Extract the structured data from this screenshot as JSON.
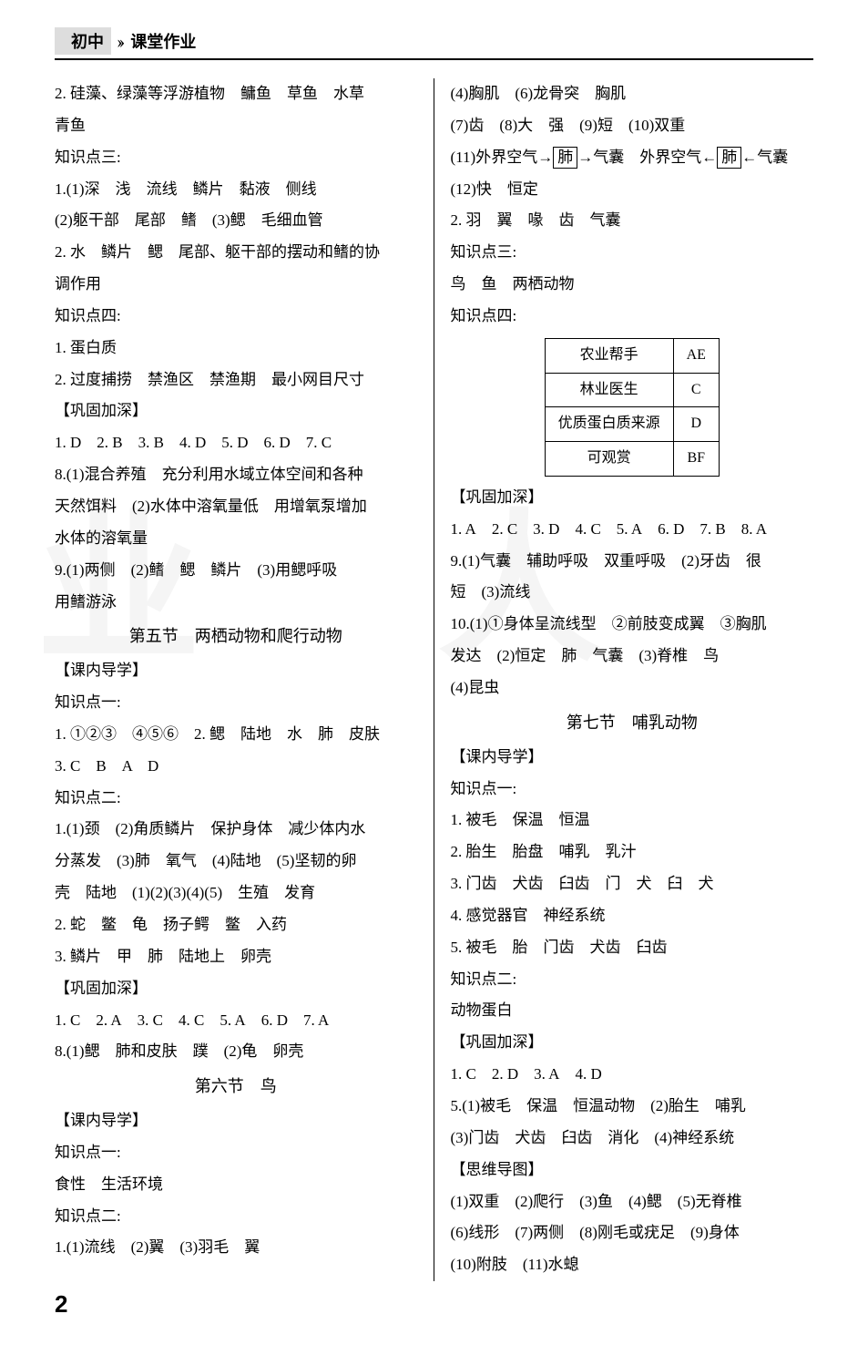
{
  "header": {
    "level": "初中",
    "title": "课堂作业"
  },
  "left": {
    "l1": "2. 硅藻、绿藻等浮游植物　鳙鱼　草鱼　水草",
    "l2": "青鱼",
    "l3": "知识点三:",
    "l4": "1.(1)深　浅　流线　鳞片　黏液　侧线",
    "l5": "(2)躯干部　尾部　鳍　(3)鳃　毛细血管",
    "l6": "2. 水　鳞片　鳃　尾部、躯干部的摆动和鳍的协",
    "l7": "调作用",
    "l8": "知识点四:",
    "l9": "1. 蛋白质",
    "l10": "2. 过度捕捞　禁渔区　禁渔期　最小网目尺寸",
    "l11": "【巩固加深】",
    "l12": "1. D 2. B 3. B 4. D 5. D 6. D 7. C",
    "l13": "8.(1)混合养殖　充分利用水域立体空间和各种",
    "l14": "天然饵料　(2)水体中溶氧量低　用增氧泵增加",
    "l15": "水体的溶氧量",
    "l16": "9.(1)两侧　(2)鳍　鳃　鳞片　(3)用鳃呼吸",
    "l17": "用鳍游泳",
    "sec5": "第五节　两栖动物和爬行动物",
    "l18": "【课内导学】",
    "l19": "知识点一:",
    "l20": "1. ①②③　④⑤⑥ 2. 鳃　陆地　水　肺　皮肤",
    "l21": "3. C　B　A　D",
    "l22": "知识点二:",
    "l23": "1.(1)颈　(2)角质鳞片　保护身体　减少体内水",
    "l24": "分蒸发　(3)肺　氧气　(4)陆地　(5)坚韧的卵",
    "l25": "壳　陆地　(1)(2)(3)(4)(5)　生殖　发育",
    "l26": "2. 蛇　鳖　龟　扬子鳄　鳖　入药",
    "l27": "3. 鳞片　甲　肺　陆地上　卵壳",
    "l28": "【巩固加深】",
    "l29": "1. C 2. A 3. C 4. C 5. A 6. D 7. A",
    "l30": "8.(1)鳃　肺和皮肤　蹼　(2)龟　卵壳",
    "sec6": "第六节　鸟",
    "l31": "【课内导学】",
    "l32": "知识点一:",
    "l33": "食性　生活环境",
    "l34": "知识点二:",
    "l35": "1.(1)流线　(2)翼　(3)羽毛　翼"
  },
  "right": {
    "r1": "(4)胸肌　(6)龙骨突　胸肌",
    "r2": "(7)齿　(8)大　强　(9)短　(10)双重",
    "r3a": "(11)外界空气→",
    "r3box1": "肺",
    "r3b": "→气囊　外界空气←",
    "r3box2": "肺",
    "r3c": "←气囊",
    "r4": "(12)快　恒定",
    "r5": "2. 羽　翼　喙　齿　气囊",
    "r6": "知识点三:",
    "r7": "鸟　鱼　两栖动物",
    "r8": "知识点四:",
    "tbl": {
      "rows": [
        [
          "农业帮手",
          "AE"
        ],
        [
          "林业医生",
          "C"
        ],
        [
          "优质蛋白质来源",
          "D"
        ],
        [
          "可观赏",
          "BF"
        ]
      ]
    },
    "r9": "【巩固加深】",
    "r10": "1. A 2. C 3. D 4. C 5. A 6. D 7. B 8. A",
    "r11": "9.(1)气囊　辅助呼吸　双重呼吸　(2)牙齿　很",
    "r12": "短　(3)流线",
    "r13": "10.(1)①身体呈流线型　②前肢变成翼　③胸肌",
    "r14": "发达　(2)恒定　肺　气囊　(3)脊椎　鸟",
    "r15": "(4)昆虫",
    "sec7": "第七节　哺乳动物",
    "r16": "【课内导学】",
    "r17": "知识点一:",
    "r18": "1. 被毛　保温　恒温",
    "r19": "2. 胎生　胎盘　哺乳　乳汁",
    "r20": "3. 门齿　犬齿　臼齿　门　犬　臼　犬",
    "r21": "4. 感觉器官　神经系统",
    "r22": "5. 被毛　胎　门齿　犬齿　臼齿",
    "r23": "知识点二:",
    "r24": "动物蛋白",
    "r25": "【巩固加深】",
    "r26": "1. C 2. D 3. A 4. D",
    "r27": "5.(1)被毛　保温　恒温动物　(2)胎生　哺乳",
    "r28": "(3)门齿　犬齿　臼齿　消化　(4)神经系统",
    "r29": "【思维导图】",
    "r30": "(1)双重　(2)爬行　(3)鱼　(4)鳃　(5)无脊椎",
    "r31": "(6)线形　(7)两侧　(8)刚毛或疣足　(9)身体",
    "r32": "(10)附肢　(11)水螅"
  },
  "pageno": "2"
}
